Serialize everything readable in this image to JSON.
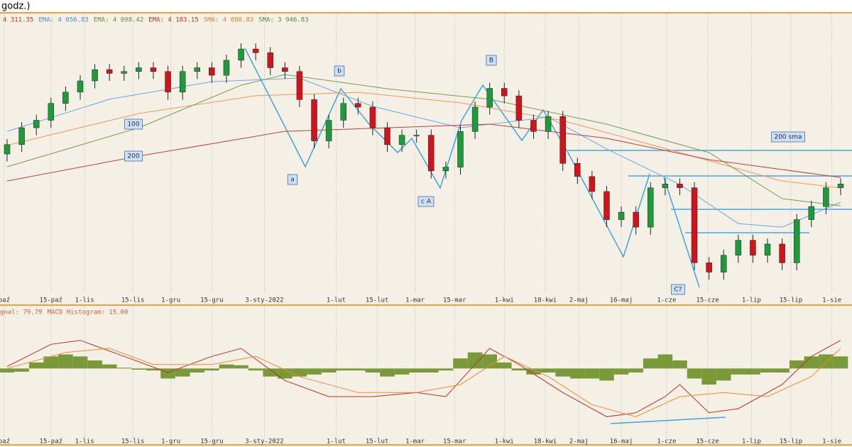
{
  "chart_data": [
    {
      "type": "candlestick",
      "title": "godz.)",
      "legend": [
        {
          "label": "4 311.35",
          "color": "#d03020"
        },
        {
          "label": "EMA: 4 056.83",
          "color": "#4a8fd0"
        },
        {
          "label": "EMA: 4 098.42",
          "color": "#6a8a3a"
        },
        {
          "label": "EMA: 4 183.15",
          "color": "#c03030"
        },
        {
          "label": "SMA: 4 080.83",
          "color": "#e08030"
        },
        {
          "label": "SMA: 3 946.83",
          "color": "#5a8a3a"
        }
      ],
      "up_color": "#1e9a3c",
      "down_color": "#d0141c",
      "open": [
        4330,
        4380,
        4470,
        4510,
        4600,
        4660,
        4720,
        4780,
        4760,
        4770,
        4790,
        4770,
        4660,
        4770,
        4790,
        4750,
        4830,
        4890,
        4870,
        4790,
        4770,
        4620,
        4400,
        4510,
        4600,
        4580,
        4470,
        4380,
        4430,
        4430,
        4240,
        4260,
        4450,
        4580,
        4680,
        4640,
        4510,
        4450,
        4530,
        4280,
        4210,
        4130,
        3980,
        4020,
        3940,
        4150,
        4170,
        4150,
        3750,
        3700,
        3790,
        3870,
        3790,
        3850,
        3750,
        3980,
        4050,
        4150
      ],
      "close": [
        4380,
        4470,
        4510,
        4600,
        4660,
        4720,
        4780,
        4760,
        4770,
        4790,
        4770,
        4660,
        4770,
        4790,
        4750,
        4830,
        4890,
        4870,
        4790,
        4770,
        4620,
        4400,
        4510,
        4600,
        4580,
        4470,
        4380,
        4430,
        4430,
        4240,
        4260,
        4450,
        4580,
        4680,
        4640,
        4510,
        4450,
        4530,
        4280,
        4210,
        4130,
        3980,
        4020,
        3940,
        4150,
        4170,
        4150,
        3750,
        3700,
        3790,
        3870,
        3790,
        3850,
        3750,
        3980,
        4050,
        4150,
        4170
      ],
      "high": [
        4410,
        4500,
        4540,
        4630,
        4690,
        4750,
        4810,
        4810,
        4800,
        4820,
        4820,
        4800,
        4800,
        4820,
        4820,
        4860,
        4920,
        4920,
        4900,
        4820,
        4800,
        4650,
        4540,
        4630,
        4630,
        4610,
        4500,
        4460,
        4460,
        4460,
        4290,
        4480,
        4610,
        4710,
        4710,
        4670,
        4540,
        4560,
        4560,
        4310,
        4240,
        4160,
        4050,
        4050,
        4180,
        4200,
        4200,
        4180,
        3780,
        3820,
        3900,
        3900,
        3880,
        3880,
        4010,
        4080,
        4180,
        4200
      ],
      "low": [
        4290,
        4340,
        4430,
        4470,
        4560,
        4620,
        4680,
        4720,
        4720,
        4730,
        4730,
        4620,
        4620,
        4730,
        4710,
        4710,
        4790,
        4830,
        4750,
        4730,
        4580,
        4360,
        4360,
        4470,
        4540,
        4430,
        4340,
        4340,
        4390,
        4200,
        4200,
        4220,
        4410,
        4540,
        4600,
        4470,
        4410,
        4410,
        4240,
        4170,
        4090,
        3940,
        3940,
        3900,
        3900,
        4110,
        4110,
        3710,
        3660,
        3660,
        3750,
        3750,
        3750,
        3710,
        3710,
        3940,
        4010,
        4110
      ],
      "xlim": [
        -0.5,
        57.5
      ],
      "ylim": [
        3600,
        5000
      ],
      "xticks": [
        {
          "value": -0.2,
          "label": "paź"
        },
        {
          "value": 3,
          "label": "15-paź"
        },
        {
          "value": 5.3,
          "label": "1-lis"
        },
        {
          "value": 8.6,
          "label": "15-lis"
        },
        {
          "value": 11.2,
          "label": "1-gru"
        },
        {
          "value": 14,
          "label": "15-gru"
        },
        {
          "value": 17.6,
          "label": "3-sty-2022"
        },
        {
          "value": 22.5,
          "label": "1-lut"
        },
        {
          "value": 25.3,
          "label": "15-lut"
        },
        {
          "value": 27.9,
          "label": "1-mar"
        },
        {
          "value": 30.6,
          "label": "15-mar"
        },
        {
          "value": 34,
          "label": "1-kwi"
        },
        {
          "value": 36.8,
          "label": "18-kwi"
        },
        {
          "value": 39.1,
          "label": "2-maj"
        },
        {
          "value": 42,
          "label": "16-maj"
        },
        {
          "value": 45.1,
          "label": "1-cze"
        },
        {
          "value": 47.9,
          "label": "15-cze"
        },
        {
          "value": 50.9,
          "label": "1-lip"
        },
        {
          "value": 53.6,
          "label": "15-lip"
        },
        {
          "value": 56.4,
          "label": "1-sie"
        }
      ],
      "overlays": [
        {
          "color": "#6aa6e0",
          "x": [
            0,
            7,
            14,
            20,
            25,
            31,
            37,
            41,
            46,
            50,
            53,
            57
          ],
          "values": [
            4451,
            4622,
            4716,
            4735,
            4584,
            4470,
            4527,
            4357,
            4168,
            3959,
            3940,
            4073
          ]
        },
        {
          "color": "#f09a50",
          "x": [
            0,
            9,
            17,
            24,
            31,
            38,
            46,
            53,
            57
          ],
          "values": [
            4376,
            4546,
            4641,
            4659,
            4603,
            4508,
            4338,
            4186,
            4149
          ]
        },
        {
          "color": "#c04040",
          "x": [
            0,
            9,
            19,
            26,
            33,
            41,
            48,
            57
          ],
          "values": [
            4186,
            4319,
            4451,
            4470,
            4489,
            4414,
            4300,
            4205
          ]
        },
        {
          "color": "#7a9a50",
          "x": [
            0,
            9,
            16,
            19,
            26,
            33,
            41,
            48,
            53,
            57
          ],
          "values": [
            4262,
            4470,
            4697,
            4754,
            4678,
            4622,
            4489,
            4338,
            4092,
            4054
          ]
        }
      ],
      "annotations": [
        "a",
        "b",
        "c A",
        "B",
        "C?",
        "100",
        "200",
        "200 sma"
      ]
    },
    {
      "type": "macd",
      "legend": [
        {
          "label": "gnal: 79.79",
          "color": "#d06030"
        },
        {
          "label": "MACD Histogram: 15.00",
          "color": "#d06030"
        }
      ],
      "histogram": {
        "color": "#7a9a3a",
        "values": [
          -10,
          -8,
          15,
          30,
          35,
          30,
          20,
          10,
          2,
          -3,
          -5,
          -25,
          -20,
          -10,
          -5,
          10,
          8,
          -5,
          -20,
          -25,
          -20,
          -15,
          -10,
          -5,
          -5,
          -10,
          -20,
          -15,
          -10,
          -10,
          -5,
          25,
          40,
          35,
          15,
          -5,
          -15,
          -10,
          -20,
          -25,
          -25,
          -30,
          -15,
          -10,
          25,
          35,
          20,
          -25,
          -40,
          -30,
          -15,
          -15,
          -10,
          -10,
          20,
          30,
          35,
          30
        ]
      },
      "series": [
        {
          "color": "#c03020",
          "x": [
            0,
            3,
            5,
            8,
            11,
            14,
            16,
            19,
            22,
            25,
            28,
            30,
            33,
            35,
            38,
            41,
            43,
            45,
            46,
            48,
            50,
            53,
            55,
            57
          ],
          "values": [
            5,
            60,
            70,
            30,
            -10,
            30,
            50,
            -30,
            -70,
            -70,
            -60,
            -70,
            50,
            10,
            -60,
            -120,
            -110,
            -70,
            -40,
            -110,
            -100,
            -40,
            30,
            70
          ]
        },
        {
          "color": "#f08a30",
          "x": [
            0,
            4,
            7,
            10,
            14,
            17,
            20,
            24,
            28,
            31,
            34,
            37,
            40,
            43,
            46,
            49,
            52,
            55,
            57
          ],
          "values": [
            0,
            40,
            50,
            10,
            10,
            30,
            -20,
            -60,
            -60,
            -40,
            30,
            -20,
            -90,
            -120,
            -70,
            -60,
            -70,
            -20,
            50
          ]
        }
      ],
      "ylim": [
        -160,
        140
      ]
    }
  ]
}
